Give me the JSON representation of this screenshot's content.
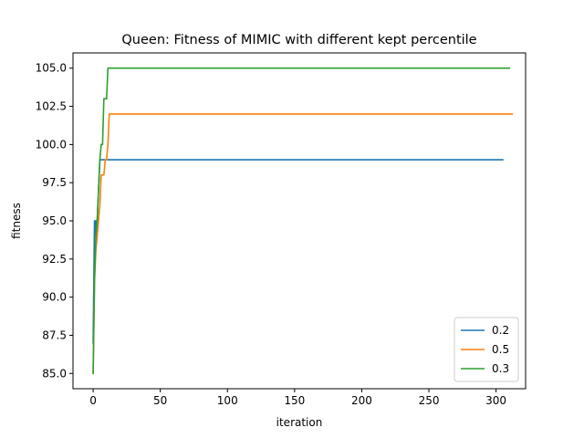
{
  "chart_data": {
    "type": "line",
    "title": "Queen: Fitness of MIMIC with different kept percentile",
    "xlabel": "iteration",
    "ylabel": "fitness",
    "xlim": [
      -15,
      322
    ],
    "ylim": [
      84.0,
      106.0
    ],
    "xticks": [
      0,
      50,
      100,
      150,
      200,
      250,
      300
    ],
    "yticks": [
      85.0,
      87.5,
      90.0,
      92.5,
      95.0,
      97.5,
      100.0,
      102.5,
      105.0
    ],
    "xtick_labels": [
      "0",
      "50",
      "100",
      "150",
      "200",
      "250",
      "300"
    ],
    "ytick_labels": [
      "85.0",
      "87.5",
      "90.0",
      "92.5",
      "95.0",
      "97.5",
      "100.0",
      "102.5",
      "105.0"
    ],
    "grid": false,
    "legend_position": "lower-right",
    "series": [
      {
        "name": "0.2",
        "color": "#1f77b4",
        "x": [
          0,
          1,
          1,
          2,
          2,
          3,
          3,
          4,
          5,
          6,
          305
        ],
        "y": [
          87,
          95,
          95,
          95,
          94,
          94,
          95,
          97,
          99,
          99,
          99
        ]
      },
      {
        "name": "0.5",
        "color": "#ff7f0e",
        "x": [
          0,
          1,
          2,
          3,
          4,
          5,
          6,
          7,
          8,
          9,
          10,
          11,
          12,
          312
        ],
        "y": [
          85,
          91,
          93,
          94,
          95,
          96,
          98,
          98,
          98,
          99,
          99,
          100,
          102,
          102
        ]
      },
      {
        "name": "0.3",
        "color": "#2ca02c",
        "x": [
          0,
          1,
          2,
          3,
          4,
          5,
          6,
          7,
          8,
          9,
          10,
          11,
          310
        ],
        "y": [
          85,
          91,
          94,
          95,
          97,
          99,
          100,
          100,
          103,
          103,
          103,
          105,
          105
        ]
      }
    ]
  }
}
